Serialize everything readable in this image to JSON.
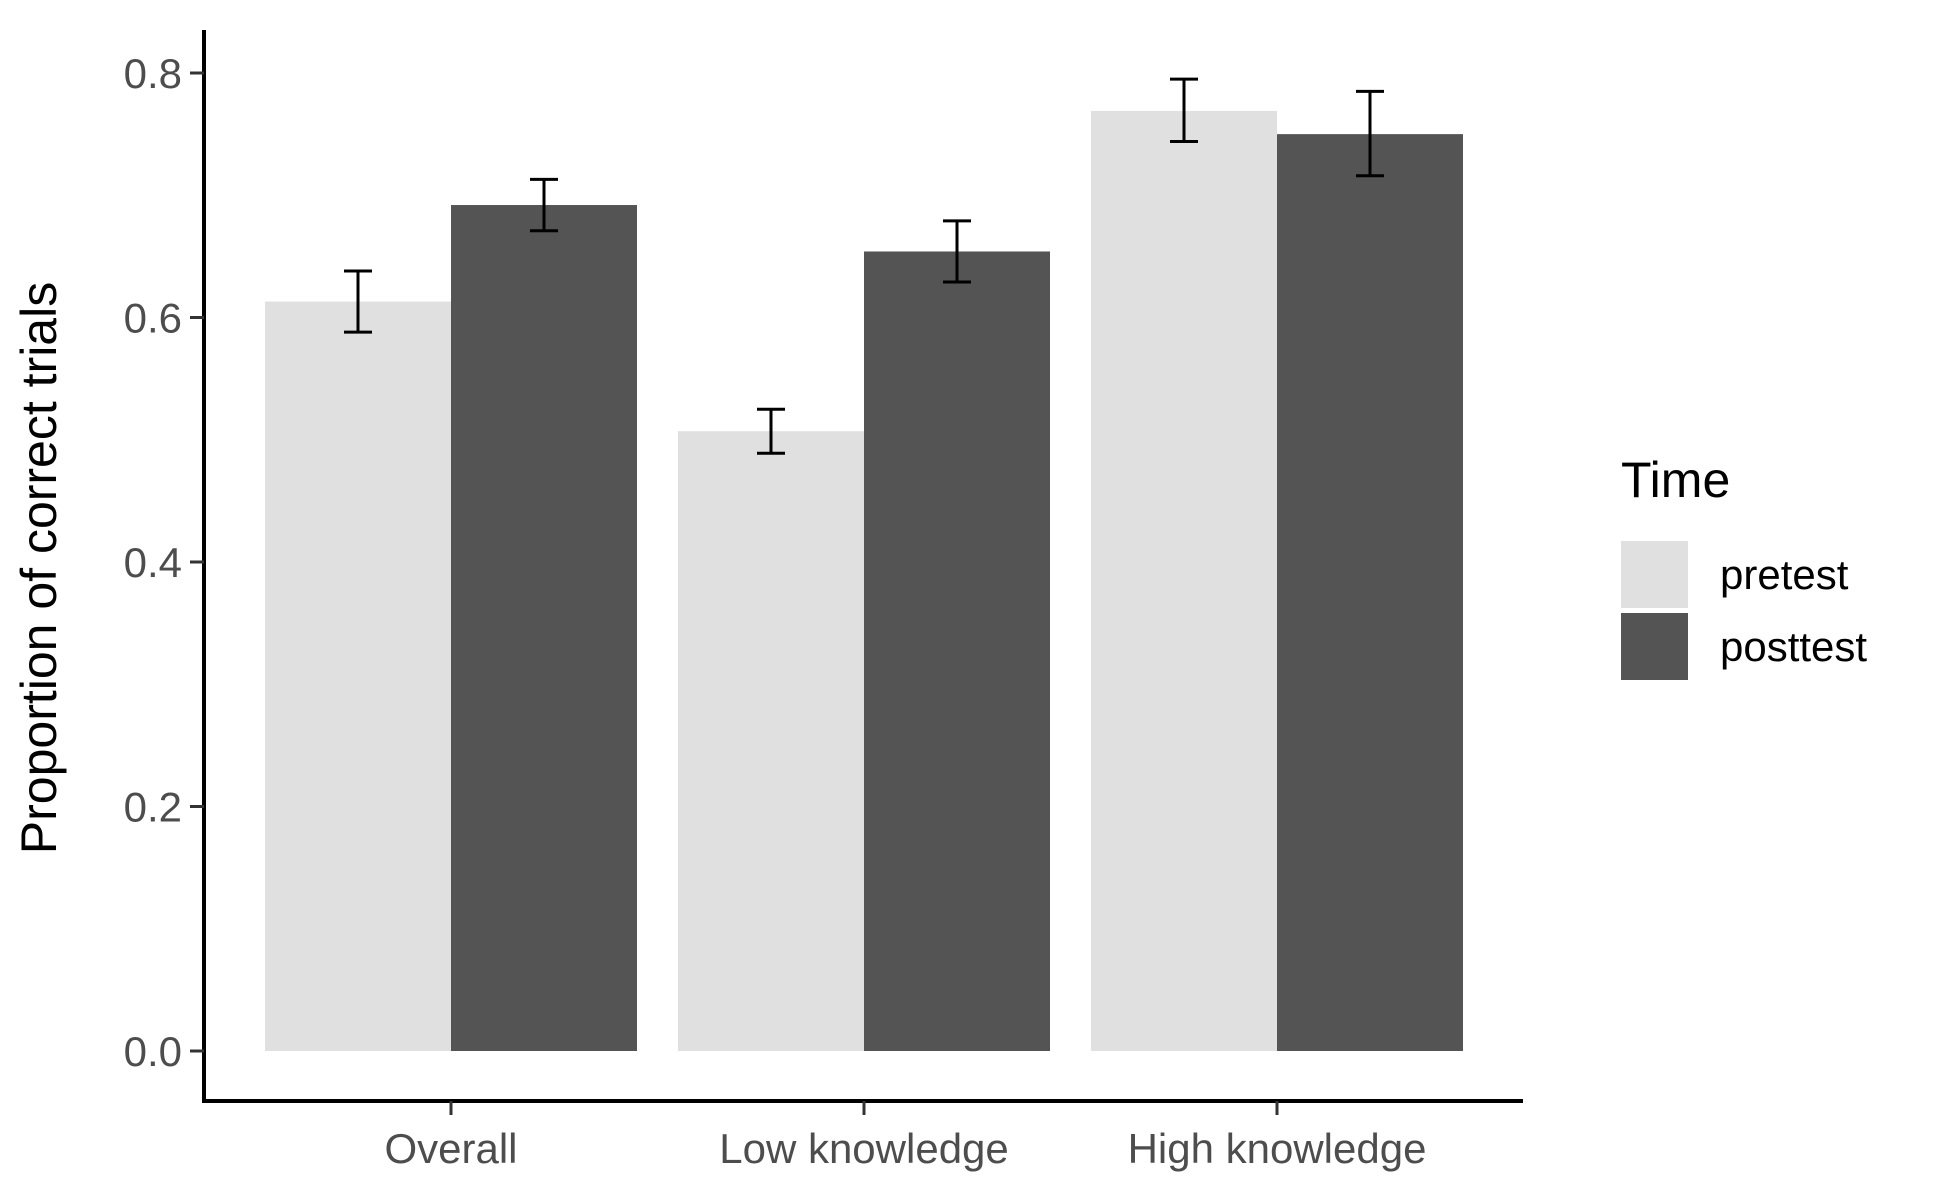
{
  "chart_data": {
    "type": "bar",
    "title": "",
    "xlabel": "",
    "ylabel": "Proportion of correct trials",
    "ylim": [
      0,
      0.8
    ],
    "y_ticks": [
      "0.0",
      "0.2",
      "0.4",
      "0.6",
      "0.8"
    ],
    "grid": false,
    "legend_position": "right",
    "categories": [
      "Overall",
      "Low knowledge",
      "High knowledge"
    ],
    "series": [
      {
        "name": "pretest",
        "color": "#e0e0e0",
        "values": [
          0.613,
          0.507,
          0.769
        ],
        "error_low": [
          0.588,
          0.489,
          0.744
        ],
        "error_high": [
          0.638,
          0.525,
          0.795
        ]
      },
      {
        "name": "posttest",
        "color": "#545454",
        "values": [
          0.692,
          0.654,
          0.75
        ],
        "error_low": [
          0.671,
          0.629,
          0.716
        ],
        "error_high": [
          0.713,
          0.679,
          0.785
        ]
      }
    ],
    "legend": {
      "title": "Time"
    }
  }
}
